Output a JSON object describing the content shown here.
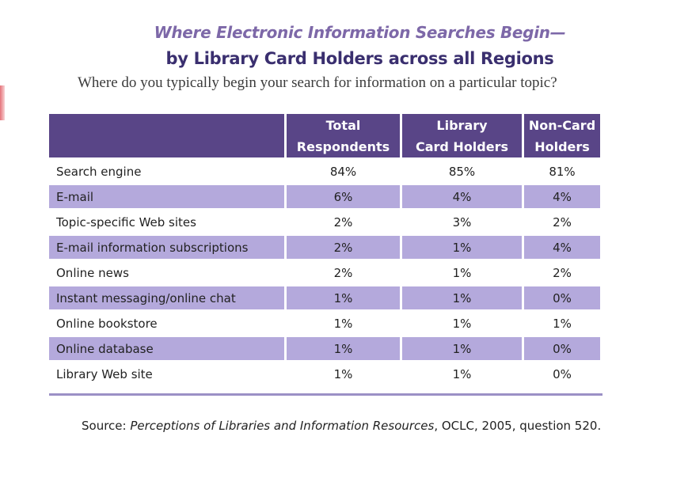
{
  "title_line1": "Where Electronic Information Searches Begin—",
  "title_line2": "by Library Card Holders across all Regions",
  "subtitle": "Where do you typically begin your search for information on a particular topic?",
  "table": {
    "headers": [
      "",
      "Total Respondents",
      "Library Card Holders",
      "Non-Card Holders"
    ],
    "header_lines": [
      [
        "",
        ""
      ],
      [
        "Total",
        "Respondents"
      ],
      [
        "Library",
        "Card Holders"
      ],
      [
        "Non-Card",
        "Holders"
      ]
    ],
    "rows": [
      {
        "label": "Search engine",
        "total": "84%",
        "card": "85%",
        "noncard": "81%"
      },
      {
        "label": "E-mail",
        "total": "6%",
        "card": "4%",
        "noncard": "4%"
      },
      {
        "label": "Topic-specific Web sites",
        "total": "2%",
        "card": "3%",
        "noncard": "2%"
      },
      {
        "label": "E-mail information subscriptions",
        "total": "2%",
        "card": "1%",
        "noncard": "4%"
      },
      {
        "label": "Online news",
        "total": "2%",
        "card": "1%",
        "noncard": "2%"
      },
      {
        "label": "Instant messaging/online chat",
        "total": "1%",
        "card": "1%",
        "noncard": "0%"
      },
      {
        "label": "Online bookstore",
        "total": "1%",
        "card": "1%",
        "noncard": "1%"
      },
      {
        "label": "Online database",
        "total": "1%",
        "card": "1%",
        "noncard": "0%"
      },
      {
        "label": "Library Web site",
        "total": "1%",
        "card": "1%",
        "noncard": "0%"
      }
    ]
  },
  "source": {
    "prefix": "Source:  ",
    "title": "Perceptions of Libraries and Information Resources",
    "suffix": ", OCLC, 2005, question 520."
  },
  "colors": {
    "title_line1": "#7d68a8",
    "title_line2": "#3a2f6f",
    "header_bg": "#594587",
    "shaded_row": "#b4a9dc",
    "accent_red": "#e5737a"
  },
  "chart_data": {
    "type": "table",
    "title": "Where Electronic Information Searches Begin— by Library Card Holders across all Regions",
    "subtitle": "Where do you typically begin your search for information on a particular topic?",
    "columns": [
      "Total Respondents",
      "Library Card Holders",
      "Non-Card Holders"
    ],
    "categories": [
      "Search engine",
      "E-mail",
      "Topic-specific Web sites",
      "E-mail information subscriptions",
      "Online news",
      "Instant messaging/online chat",
      "Online bookstore",
      "Online database",
      "Library Web site"
    ],
    "series": [
      {
        "name": "Total Respondents",
        "values": [
          84,
          6,
          2,
          2,
          2,
          1,
          1,
          1,
          1
        ]
      },
      {
        "name": "Library Card Holders",
        "values": [
          85,
          4,
          3,
          1,
          1,
          1,
          1,
          1,
          1
        ]
      },
      {
        "name": "Non-Card Holders",
        "values": [
          81,
          4,
          2,
          4,
          2,
          0,
          1,
          0,
          0
        ]
      }
    ],
    "unit": "%"
  }
}
